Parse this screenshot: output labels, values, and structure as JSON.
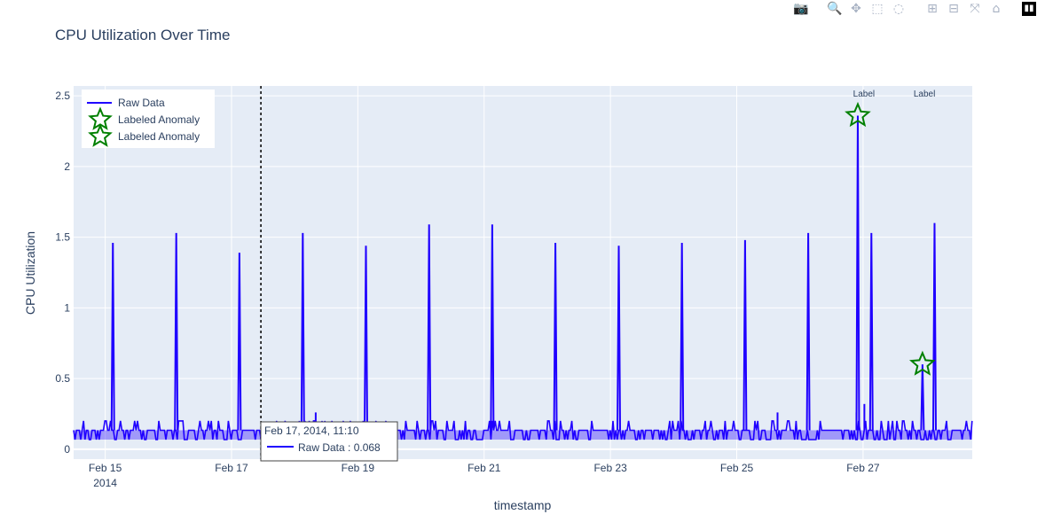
{
  "toolbar": {
    "buttons": [
      {
        "name": "camera-icon",
        "glyph": "📷",
        "active": false
      },
      {
        "name": "zoom-icon",
        "glyph": "🔍",
        "active": true
      },
      {
        "name": "pan-icon",
        "glyph": "✥",
        "active": false
      },
      {
        "name": "box-select-icon",
        "glyph": "⬚",
        "active": false
      },
      {
        "name": "lasso-select-icon",
        "glyph": "◌",
        "active": false
      },
      {
        "name": "zoom-in-icon",
        "glyph": "⊞",
        "active": false
      },
      {
        "name": "zoom-out-icon",
        "glyph": "⊟",
        "active": false
      },
      {
        "name": "autoscale-icon",
        "glyph": "⤧",
        "active": false
      },
      {
        "name": "reset-axes-icon",
        "glyph": "⌂",
        "active": false
      }
    ]
  },
  "chart_data": {
    "type": "line",
    "title": "CPU Utilization Over Time",
    "xlabel": "timestamp",
    "ylabel": "CPU Utilization",
    "xlim": [
      "2014-02-14T12:00",
      "2014-02-28T17:30"
    ],
    "ylim": [
      -0.07,
      2.57
    ],
    "x_ticks": [
      {
        "date": "2014-02-15T00:00",
        "label": "Feb 15",
        "sub": "2014"
      },
      {
        "date": "2014-02-17T00:00",
        "label": "Feb 17",
        "sub": ""
      },
      {
        "date": "2014-02-19T00:00",
        "label": "Feb 19",
        "sub": ""
      },
      {
        "date": "2014-02-21T00:00",
        "label": "Feb 21",
        "sub": ""
      },
      {
        "date": "2014-02-23T00:00",
        "label": "Feb 23",
        "sub": ""
      },
      {
        "date": "2014-02-25T00:00",
        "label": "Feb 25",
        "sub": ""
      },
      {
        "date": "2014-02-27T00:00",
        "label": "Feb 27",
        "sub": ""
      }
    ],
    "y_ticks": [
      0,
      0.5,
      1,
      1.5,
      2,
      2.5
    ],
    "y_tick_labels": [
      "0",
      "0.5",
      "1",
      "1.5",
      "2",
      "2.5"
    ],
    "grid": true,
    "legend_position": "top-left",
    "baseline": {
      "low": 0.068,
      "high": 0.134
    },
    "series": [
      {
        "name": "Raw Data",
        "color": "#1f00ff",
        "spikes": [
          {
            "x": "2014-02-15T02:55",
            "y": 1.46
          },
          {
            "x": "2014-02-16T03:00",
            "y": 1.53
          },
          {
            "x": "2014-02-17T03:00",
            "y": 1.39
          },
          {
            "x": "2014-02-18T03:05",
            "y": 1.53
          },
          {
            "x": "2014-02-19T03:05",
            "y": 1.44
          },
          {
            "x": "2014-02-20T03:05",
            "y": 1.59
          },
          {
            "x": "2014-02-21T03:05",
            "y": 1.59
          },
          {
            "x": "2014-02-22T03:05",
            "y": 1.46
          },
          {
            "x": "2014-02-23T03:10",
            "y": 1.44
          },
          {
            "x": "2014-02-24T03:10",
            "y": 1.46
          },
          {
            "x": "2014-02-25T03:10",
            "y": 1.48
          },
          {
            "x": "2014-02-26T03:10",
            "y": 1.53
          },
          {
            "x": "2014-02-26T22:00",
            "y": 2.36
          },
          {
            "x": "2014-02-27T03:10",
            "y": 1.53
          },
          {
            "x": "2014-02-27T22:35",
            "y": 0.6
          },
          {
            "x": "2014-02-28T03:10",
            "y": 1.6
          }
        ],
        "small_spikes": [
          {
            "x": "2014-02-18T08:00",
            "y": 0.26
          },
          {
            "x": "2014-02-25T15:30",
            "y": 0.26
          },
          {
            "x": "2014-02-26T21:30",
            "y": 0.26
          },
          {
            "x": "2014-02-27T00:30",
            "y": 0.32
          }
        ]
      },
      {
        "name": "Labeled Anomaly",
        "color": "#008000",
        "marker": "star-open",
        "points": [
          {
            "x": "2014-02-26T22:00",
            "y": 2.36
          }
        ]
      },
      {
        "name": "Labeled Anomaly",
        "color": "#008000",
        "marker": "star-open",
        "points": [
          {
            "x": "2014-02-27T22:35",
            "y": 0.6
          }
        ]
      }
    ],
    "annotations": [
      {
        "x": "2014-02-27T00:20",
        "text": "Label"
      },
      {
        "x": "2014-02-27T23:20",
        "text": "Label"
      }
    ],
    "hover": {
      "x": "2014-02-17T11:10",
      "title": "Feb 17, 2014, 11:10",
      "series": "Raw Data",
      "value": "0.068"
    }
  }
}
